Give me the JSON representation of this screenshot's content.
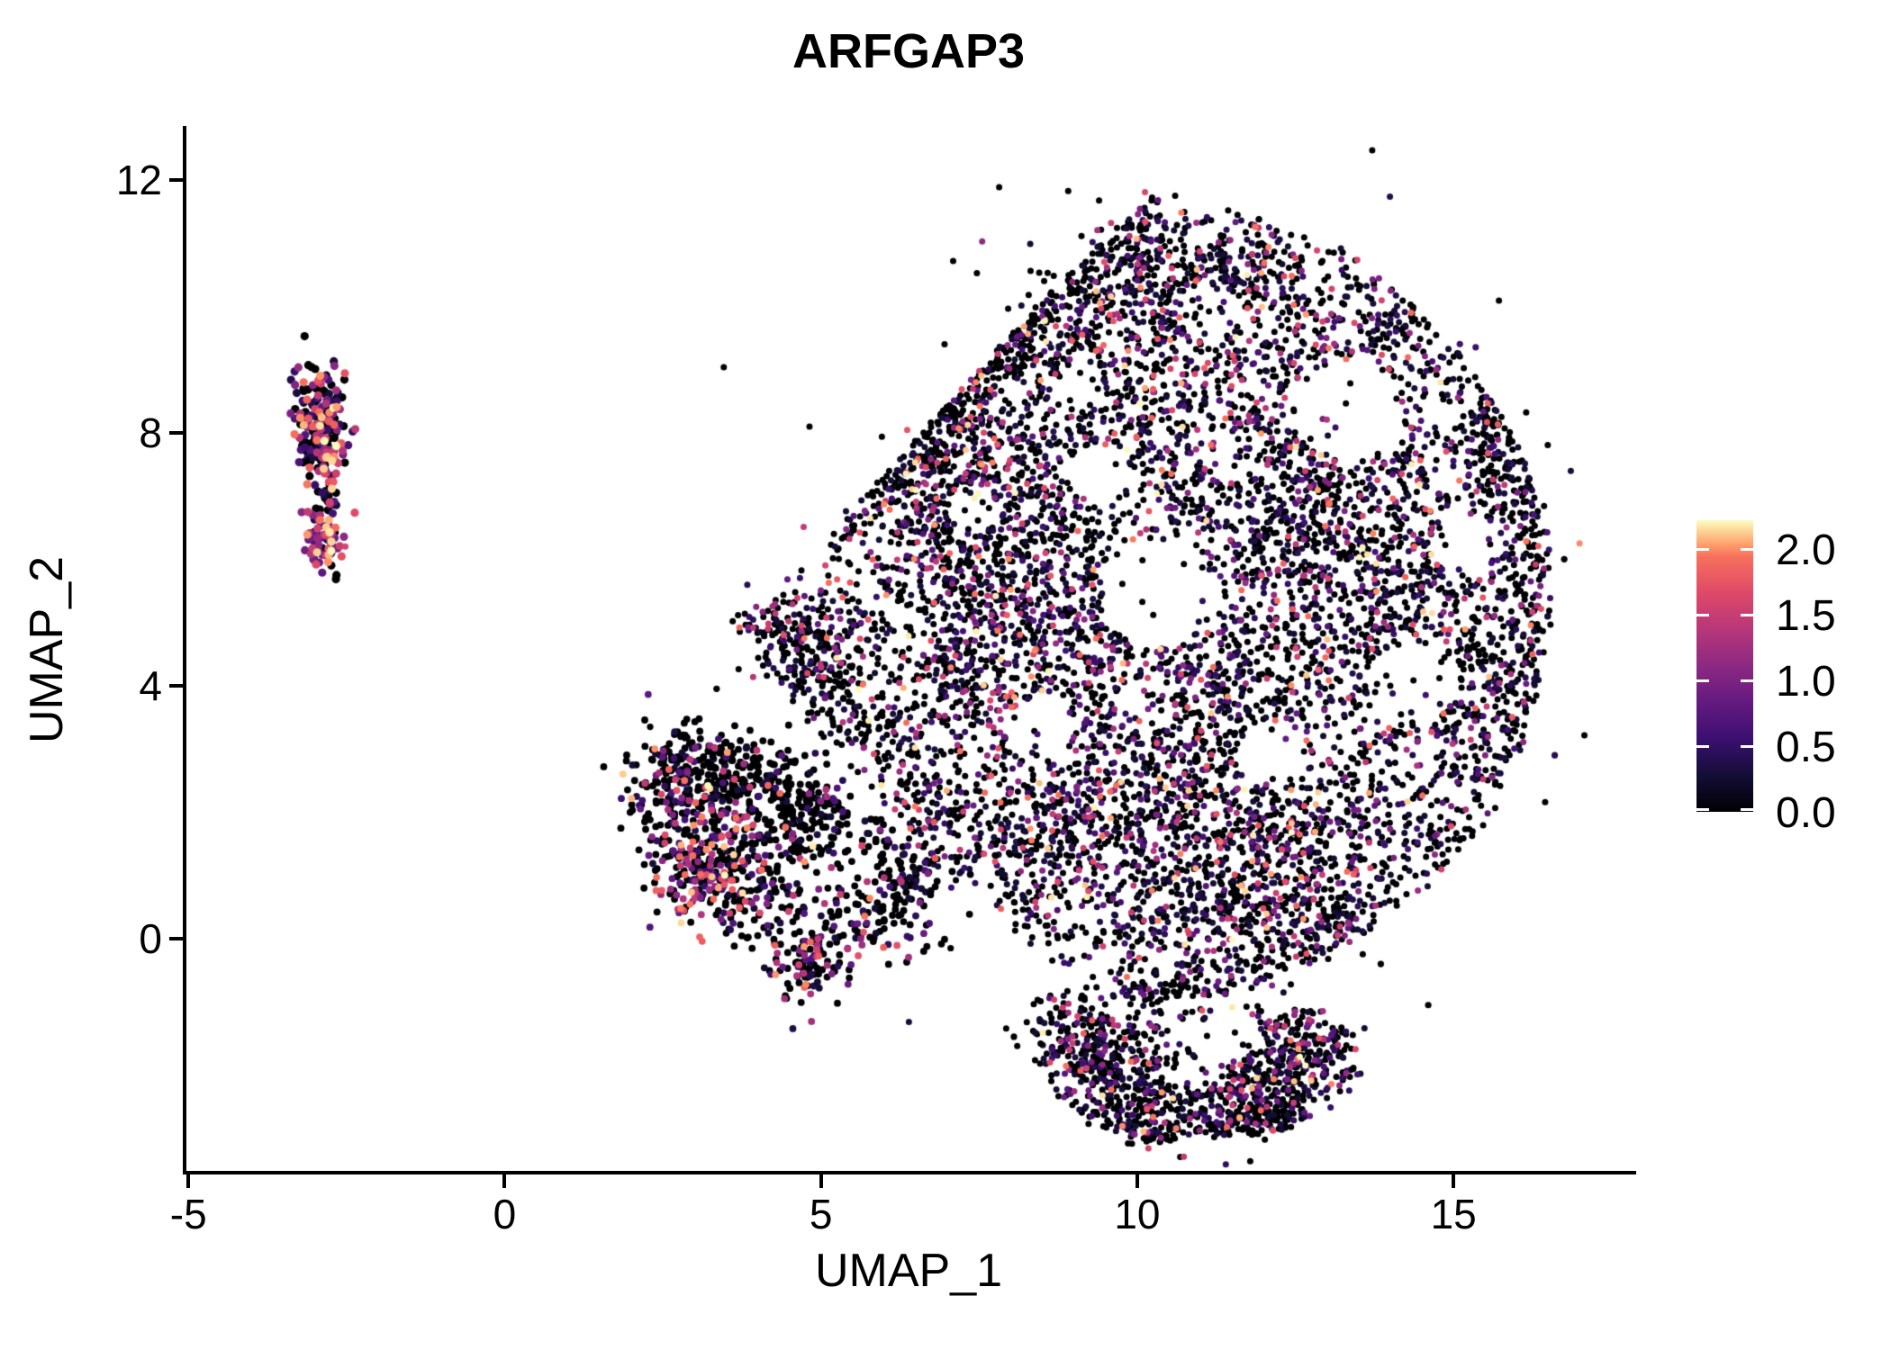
{
  "page": {
    "background": "#ffffff"
  },
  "title": {
    "text": "ARFGAP3"
  },
  "axes": {
    "x": {
      "label": "UMAP_1",
      "tick_labels": [
        "-5",
        "0",
        "5",
        "10",
        "15"
      ],
      "tick_values": [
        -5,
        0,
        5,
        10,
        15
      ]
    },
    "y": {
      "label": "UMAP_2",
      "tick_labels": [
        "0",
        "4",
        "8",
        "12"
      ],
      "tick_values": [
        0,
        4,
        8,
        12
      ]
    }
  },
  "legend": {
    "tick_labels": [
      "2.0",
      "1.5",
      "1.0",
      "0.5",
      "0.0"
    ],
    "tick_values": [
      2.0,
      1.5,
      1.0,
      0.5,
      0.0
    ],
    "vmin": 0,
    "vmax": 2.22,
    "colormap": "magma"
  },
  "chart_data": {
    "type": "scatter",
    "title": "ARFGAP3",
    "xlabel": "UMAP_1",
    "ylabel": "UMAP_2",
    "xlim": [
      -5.06,
      17.83
    ],
    "ylim": [
      -3.7,
      12.82
    ],
    "x_ticks": [
      -5,
      0,
      5,
      10,
      15
    ],
    "y_ticks": [
      0,
      4,
      8,
      12
    ],
    "grid": false,
    "legend_position": "right",
    "color_scale": {
      "name": "magma",
      "vmin": 0,
      "vmax": 2.22,
      "legend_ticks": [
        0.0,
        0.5,
        1.0,
        1.5,
        2.0
      ],
      "zero_color": "#000004",
      "stops": [
        [
          0.0,
          "#000004"
        ],
        [
          0.125,
          "#140e36"
        ],
        [
          0.25,
          "#3b0f70"
        ],
        [
          0.375,
          "#641a80"
        ],
        [
          0.5,
          "#8c2981"
        ],
        [
          0.625,
          "#b73779"
        ],
        [
          0.75,
          "#de4968"
        ],
        [
          0.875,
          "#f7705c"
        ],
        [
          0.917,
          "#fe9f6d"
        ],
        [
          0.958,
          "#fece91"
        ],
        [
          1.0,
          "#fcfdbf"
        ]
      ]
    },
    "seed": 1337,
    "value_floor": 0.25,
    "polygons": {
      "main": [
        [
          3.55,
          5.05
        ],
        [
          4.3,
          5.6
        ],
        [
          5.0,
          6.1
        ],
        [
          5.7,
          7.0
        ],
        [
          6.6,
          8.0
        ],
        [
          7.5,
          9.0
        ],
        [
          8.4,
          10.0
        ],
        [
          9.3,
          10.9
        ],
        [
          10.15,
          11.75
        ],
        [
          11.0,
          11.45
        ],
        [
          12.0,
          11.45
        ],
        [
          13.1,
          11.05
        ],
        [
          14.15,
          10.2
        ],
        [
          15.25,
          9.1
        ],
        [
          16.05,
          7.8
        ],
        [
          16.5,
          6.4
        ],
        [
          16.55,
          4.9
        ],
        [
          16.2,
          3.3
        ],
        [
          15.65,
          2.0
        ],
        [
          14.75,
          0.95
        ],
        [
          13.6,
          0.05
        ],
        [
          12.5,
          -0.5
        ],
        [
          11.3,
          -0.9
        ],
        [
          10.0,
          -1.0
        ],
        [
          8.9,
          -0.62
        ],
        [
          8.2,
          0.0
        ],
        [
          7.5,
          0.38
        ],
        [
          6.72,
          1.08
        ],
        [
          6.2,
          2.0
        ],
        [
          5.5,
          2.65
        ],
        [
          4.72,
          3.48
        ],
        [
          4.0,
          4.3
        ]
      ],
      "appendage": [
        [
          8.3,
          -0.85
        ],
        [
          9.2,
          -0.72
        ],
        [
          10.0,
          -0.8
        ],
        [
          10.9,
          -1.0
        ],
        [
          12.0,
          -1.0
        ],
        [
          12.9,
          -1.1
        ],
        [
          13.4,
          -1.5
        ],
        [
          13.6,
          -2.1
        ],
        [
          13.1,
          -2.65
        ],
        [
          12.4,
          -3.0
        ],
        [
          11.6,
          -3.15
        ],
        [
          10.8,
          -3.25
        ],
        [
          10.0,
          -3.2
        ],
        [
          9.3,
          -2.95
        ],
        [
          8.7,
          -2.45
        ],
        [
          8.25,
          -1.7
        ],
        [
          8.1,
          -1.2
        ]
      ]
    },
    "holes": {
      "main": [
        [
          10.35,
          5.45,
          0.95,
          0.85,
          0.05
        ],
        [
          13.35,
          8.35,
          0.85,
          0.8,
          0.08
        ],
        [
          9.4,
          7.35,
          0.5,
          0.45,
          0.12
        ],
        [
          12.15,
          2.9,
          0.6,
          0.5,
          0.15
        ],
        [
          14.35,
          4.05,
          0.75,
          0.62,
          0.12
        ],
        [
          8.45,
          3.3,
          0.55,
          0.5,
          0.15
        ],
        [
          11.2,
          9.9,
          0.5,
          0.4,
          0.2
        ],
        [
          15.15,
          6.3,
          0.5,
          0.55,
          0.2
        ],
        [
          7.4,
          6.8,
          0.42,
          0.4,
          0.25
        ],
        [
          9.0,
          8.6,
          0.4,
          0.35,
          0.25
        ],
        [
          11.6,
          7.6,
          0.45,
          0.4,
          0.3
        ],
        [
          10.1,
          3.7,
          0.45,
          0.4,
          0.3
        ]
      ],
      "appendage": [
        [
          11.35,
          -1.55,
          0.62,
          0.38,
          0.12
        ],
        [
          10.9,
          -2.1,
          0.45,
          0.3,
          0.3
        ]
      ]
    },
    "groups": [
      {
        "name": "main-blob",
        "clip": "main",
        "radius": 3.5,
        "clumps": [
          [
            "g",
            10.4,
            5.2,
            3.0,
            2.7,
            1100,
            0.6,
            3.0
          ],
          [
            "g",
            8.2,
            7.6,
            1.4,
            1.4,
            520,
            0.55,
            2.8
          ],
          [
            "g",
            10.6,
            8.9,
            1.5,
            1.3,
            520,
            0.55,
            2.6
          ],
          [
            "g",
            13.0,
            8.1,
            1.2,
            1.2,
            380,
            0.56,
            2.8
          ],
          [
            "g",
            14.8,
            6.2,
            1.0,
            1.3,
            380,
            0.58,
            2.8
          ],
          [
            "g",
            15.0,
            3.9,
            0.95,
            1.0,
            300,
            0.6,
            3.0
          ],
          [
            "g",
            9.2,
            4.6,
            1.1,
            1.2,
            400,
            0.55,
            2.6
          ],
          [
            "g",
            7.4,
            5.9,
            0.95,
            1.1,
            340,
            0.6,
            2.8
          ],
          [
            "g",
            6.8,
            7.3,
            0.75,
            0.85,
            250,
            0.62,
            2.8
          ],
          [
            "g",
            8.7,
            10.0,
            0.95,
            0.8,
            280,
            0.6,
            3.0
          ],
          [
            "g",
            10.4,
            10.7,
            0.85,
            0.65,
            240,
            0.58,
            2.8
          ],
          [
            "g",
            12.0,
            10.4,
            0.85,
            0.65,
            200,
            0.6,
            3.0
          ],
          [
            "g",
            9.8,
            2.4,
            1.15,
            1.05,
            400,
            0.55,
            2.6
          ],
          [
            "g",
            11.6,
            1.4,
            1.05,
            0.95,
            340,
            0.56,
            2.6
          ],
          [
            "g",
            13.3,
            1.8,
            0.95,
            0.85,
            270,
            0.58,
            2.8
          ],
          [
            "g",
            8.4,
            1.3,
            0.85,
            0.85,
            270,
            0.58,
            2.8
          ],
          [
            "g",
            12.7,
            0.3,
            1.0,
            0.55,
            210,
            0.6,
            2.8
          ],
          [
            "g",
            10.5,
            0.3,
            1.0,
            0.55,
            230,
            0.58,
            2.6
          ],
          [
            "g",
            4.95,
            4.7,
            0.6,
            0.55,
            170,
            0.62,
            2.5
          ],
          [
            "g",
            6.7,
            2.1,
            0.55,
            0.55,
            140,
            0.62,
            2.8
          ],
          [
            "g",
            7.3,
            4.0,
            0.75,
            0.95,
            280,
            0.58,
            2.6
          ],
          [
            "g",
            14.3,
            9.7,
            0.65,
            0.55,
            150,
            0.6,
            3.0
          ],
          [
            "g",
            12.3,
            6.6,
            1.0,
            1.0,
            260,
            0.58,
            2.8
          ],
          [
            "g",
            13.8,
            5.0,
            0.9,
            0.9,
            240,
            0.6,
            2.8
          ],
          [
            "g",
            15.9,
            7.9,
            0.5,
            0.6,
            130,
            0.65,
            3.0
          ],
          [
            "g",
            11.5,
            3.9,
            1.0,
            0.9,
            300,
            0.56,
            2.6
          ],
          [
            "g",
            10.5,
            5.5,
            3.6,
            3.3,
            250,
            0.68,
            3.0
          ],
          [
            "l",
            5.0,
            6.2,
            7.5,
            9.0,
            0.25,
            180,
            0.78,
            2.8
          ],
          [
            "l",
            7.5,
            9.0,
            9.9,
            11.5,
            0.25,
            150,
            0.78,
            2.8
          ],
          [
            "l",
            3.8,
            5.3,
            6.1,
            3.0,
            0.3,
            230,
            0.72,
            2.4
          ],
          [
            "l",
            15.3,
            9.0,
            16.3,
            6.3,
            0.3,
            120,
            0.76,
            3.0
          ],
          [
            "l",
            16.35,
            6.3,
            16.0,
            3.6,
            0.28,
            130,
            0.76,
            3.0
          ],
          [
            "l",
            15.9,
            3.4,
            14.6,
            1.0,
            0.3,
            110,
            0.74,
            3.0
          ],
          [
            "l",
            13.6,
            0.1,
            11.5,
            -0.8,
            0.28,
            110,
            0.7,
            3.0
          ],
          [
            "l",
            11.5,
            -0.85,
            9.9,
            -0.9,
            0.22,
            80,
            0.7,
            3.0
          ]
        ]
      },
      {
        "name": "bottom-appendage",
        "clip": "appendage",
        "radius": 3.5,
        "clumps": [
          [
            "g",
            9.4,
            -2.0,
            0.55,
            0.55,
            220,
            0.6,
            3.0
          ],
          [
            "g",
            10.35,
            -2.55,
            0.75,
            0.4,
            220,
            0.6,
            3.0
          ],
          [
            "g",
            11.6,
            -2.35,
            0.7,
            0.5,
            220,
            0.58,
            2.8
          ],
          [
            "g",
            12.7,
            -1.8,
            0.5,
            0.5,
            170,
            0.6,
            2.8
          ],
          [
            "g",
            13.15,
            -1.3,
            0.4,
            0.4,
            100,
            0.62,
            3.0
          ],
          [
            "g",
            9.0,
            -1.3,
            0.45,
            0.5,
            130,
            0.62,
            3.0
          ],
          [
            "g",
            10.6,
            -1.3,
            0.9,
            0.35,
            110,
            0.7,
            3.0
          ],
          [
            "g",
            12.2,
            -2.2,
            0.5,
            0.4,
            130,
            0.58,
            2.8
          ],
          [
            "l",
            9.6,
            -2.9,
            10.6,
            -3.1,
            0.18,
            70,
            0.7,
            3.0
          ],
          [
            "l",
            11.3,
            -3.05,
            12.5,
            -2.75,
            0.18,
            80,
            0.68,
            3.0
          ]
        ]
      },
      {
        "name": "mid-left-cluster",
        "clip": null,
        "radius": 3.9,
        "clumps": [
          [
            "g",
            3.05,
            2.75,
            0.5,
            0.4,
            150,
            0.78,
            2.5
          ],
          [
            "g",
            2.55,
            2.2,
            0.28,
            0.45,
            90,
            0.72,
            2.2
          ],
          [
            "g",
            3.9,
            2.55,
            0.55,
            0.3,
            110,
            0.8,
            2.5
          ],
          [
            "l",
            4.5,
            2.35,
            5.4,
            2.1,
            0.15,
            50,
            0.82,
            2.5
          ],
          [
            "g",
            3.35,
            1.45,
            0.45,
            0.55,
            160,
            0.45,
            1.15
          ],
          [
            "g",
            2.95,
            0.95,
            0.3,
            0.4,
            100,
            0.42,
            1.0
          ],
          [
            "g",
            3.85,
            0.75,
            0.45,
            0.4,
            120,
            0.65,
            2.0
          ],
          [
            "g",
            4.5,
            1.75,
            0.5,
            0.45,
            130,
            0.78,
            2.5
          ],
          [
            "l",
            4.8,
            2.0,
            6.3,
            1.5,
            0.18,
            40,
            0.8,
            2.5
          ],
          [
            "g",
            5.85,
            0.4,
            0.5,
            0.4,
            120,
            0.68,
            2.5
          ],
          [
            "g",
            6.4,
            0.95,
            0.3,
            0.3,
            60,
            0.72,
            2.5
          ],
          [
            "g",
            4.8,
            -0.5,
            0.28,
            0.28,
            80,
            0.5,
            1.6
          ],
          [
            "l",
            4.3,
            0.15,
            5.3,
            -0.25,
            0.2,
            30,
            0.7,
            2.5
          ]
        ]
      },
      {
        "name": "left-small-cluster",
        "clip": null,
        "radius": 4.6,
        "clumps": [
          [
            "g",
            -2.95,
            8.3,
            0.2,
            0.38,
            130,
            0.4,
            1.1
          ],
          [
            "g",
            -2.82,
            7.65,
            0.17,
            0.3,
            90,
            0.42,
            1.1
          ],
          [
            "g",
            -2.85,
            6.35,
            0.16,
            0.28,
            80,
            0.22,
            0.95
          ],
          [
            "l",
            -2.82,
            7.15,
            -2.78,
            6.75,
            0.08,
            14,
            0.5,
            1.2
          ]
        ]
      }
    ],
    "strays": [
      [
        -2.52,
        6.2,
        1.6
      ],
      [
        15.35,
        9.35,
        0.55
      ],
      [
        15.1,
        9.4,
        0.6
      ],
      [
        14.6,
        -1.05,
        0
      ],
      [
        13.85,
        -0.4,
        0
      ],
      [
        7.05,
        -0.15,
        0
      ],
      [
        3.35,
        3.95,
        0
      ],
      [
        2.3,
        3.35,
        0
      ],
      [
        6.55,
        5.2,
        0
      ],
      [
        16.75,
        6.0,
        0
      ],
      [
        16.6,
        2.9,
        0.4
      ],
      [
        8.05,
        -1.55,
        0
      ],
      [
        5.25,
        3.1,
        0
      ]
    ]
  }
}
